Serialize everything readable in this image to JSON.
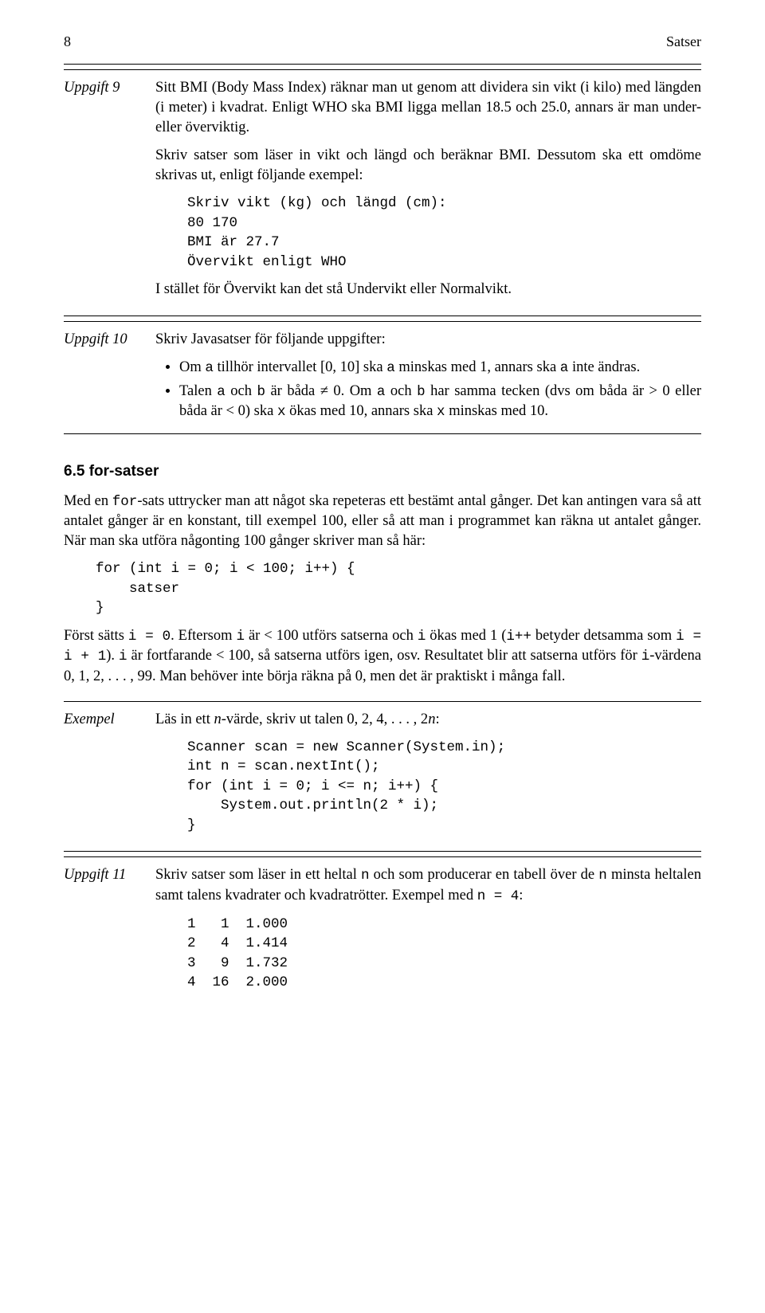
{
  "header": {
    "page_number": "8",
    "title": "Satser"
  },
  "uppgift9": {
    "label": "Uppgift 9",
    "p1_a": "Sitt BMI (Body Mass Index) räknar man ut genom att dividera sin vikt (i kilo) med längden (i meter) i kvadrat. Enligt WHO ska BMI ligga mellan 18.5 och 25.0, annars är man under- eller överviktig.",
    "p2": "Skriv satser som läser in vikt och längd och beräknar BMI. Dessutom ska ett omdöme skrivas ut, enligt följande exempel:",
    "code": "Skriv vikt (kg) och längd (cm):\n80 170\nBMI är 27.7\nÖvervikt enligt WHO",
    "p3": "I stället för Övervikt kan det stå Undervikt eller Normalvikt."
  },
  "uppgift10": {
    "label": "Uppgift 10",
    "p1": "Skriv Javasatser för följande uppgifter:",
    "bullet1_a": "Om ",
    "bullet1_b": " tillhör intervallet [0, 10] ska ",
    "bullet1_c": " minskas med 1, annars ska ",
    "bullet1_d": " inte ändras.",
    "bullet2_a": "Talen ",
    "bullet2_b": " och ",
    "bullet2_c": " är båda ≠ 0. Om ",
    "bullet2_d": " och ",
    "bullet2_e": " har samma tecken (dvs om båda är > 0 eller båda är < 0) ska ",
    "bullet2_f": " ökas med 10, annars ska ",
    "bullet2_g": " minskas med 10.",
    "code_a": "a",
    "code_b": "b",
    "code_x": "x"
  },
  "section65": {
    "title": "6.5   for-satser",
    "p1_a": "Med en ",
    "p1_b": "-sats uttrycker man att något ska repeteras ett bestämt antal gånger. Det kan antingen vara så att antalet gånger är en konstant, till exempel 100, eller så att man i programmet kan räkna ut antalet gånger. När man ska utföra någonting 100 gånger skriver man så här:",
    "code_for": "for",
    "code1": "for (int i = 0; i < 100; i++) {\n    satser\n}",
    "p2_1": "Först sätts ",
    "p2_2": ". Eftersom ",
    "p2_3": " är < 100 utförs satserna och ",
    "p2_4": " ökas med 1 (",
    "p2_5": " betyder detsamma som ",
    "p2_6": "). ",
    "p2_7": " är fortfarande < 100, så satserna utförs igen, osv. Resultatet blir att satserna utförs för ",
    "p2_8": "-värdena 0, 1, 2, . . . , 99. Man behöver inte börja räkna på 0, men det är praktiskt i många fall.",
    "c_i_eq_0": "i = 0",
    "c_i": "i",
    "c_ipp": "i++",
    "c_i_eq_i1": "i = i + 1"
  },
  "exempel": {
    "label": "Exempel",
    "p1_a": "Läs in ett ",
    "p1_b": "-värde, skriv ut talen 0, 2, 4, . . . , 2",
    "p1_c": ":",
    "ital_n": "n",
    "code": "Scanner scan = new Scanner(System.in);\nint n = scan.nextInt();\nfor (int i = 0; i <= n; i++) {\n    System.out.println(2 * i);\n}"
  },
  "uppgift11": {
    "label": "Uppgift 11",
    "p1_a": "Skriv satser som läser in ett heltal ",
    "p1_b": " och som producerar en tabell över de ",
    "p1_c": " minsta heltalen samt talens kvadrater och kvadratrötter. Exempel med ",
    "p1_d": ":",
    "code_n": "n",
    "code_n4": "n = 4",
    "table": "1   1  1.000\n2   4  1.414\n3   9  1.732\n4  16  2.000"
  }
}
